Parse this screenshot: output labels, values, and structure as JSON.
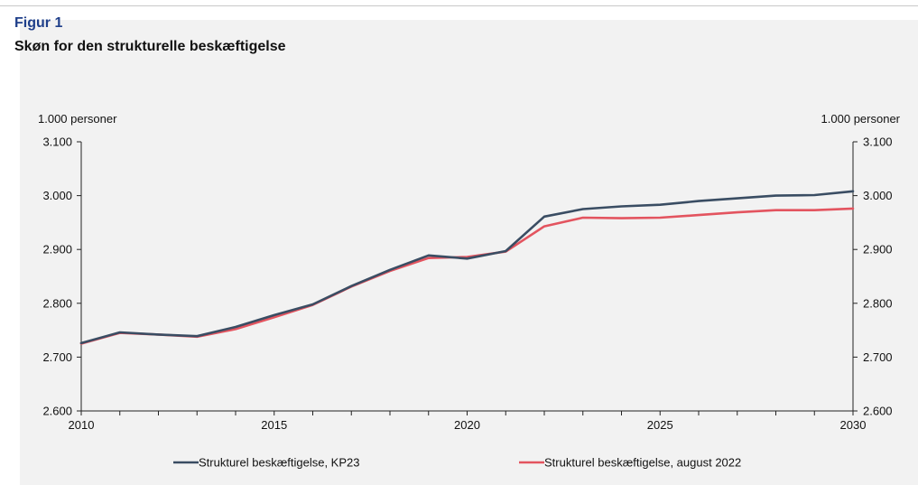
{
  "figure": {
    "label": "Figur 1",
    "title": "Skøn for den strukturelle beskæftigelse"
  },
  "chart_data": {
    "type": "line",
    "title": "Skøn for den strukturelle beskæftigelse",
    "ylabel_left": "1.000 personer",
    "ylabel_right": "1.000 personer",
    "xlim": [
      2010,
      2030
    ],
    "ylim": [
      2600,
      3100
    ],
    "x_tick_labels": [
      "2010",
      "2015",
      "2020",
      "2025",
      "2030"
    ],
    "y_tick_labels": [
      "2.600",
      "2.700",
      "2.800",
      "2.900",
      "3.000",
      "3.100"
    ],
    "grid": false,
    "legend_position": "bottom",
    "series": [
      {
        "name": "Strukturel beskæftigelse, KP23",
        "color": "#3a4d63",
        "x": [
          2010,
          2011,
          2012,
          2013,
          2014,
          2015,
          2016,
          2017,
          2018,
          2019,
          2020,
          2021,
          2022,
          2023,
          2024,
          2025,
          2026,
          2027,
          2028,
          2029,
          2030
        ],
        "values": [
          2726,
          2746,
          2742,
          2739,
          2756,
          2778,
          2798,
          2832,
          2862,
          2889,
          2883,
          2897,
          2961,
          2975,
          2980,
          2983,
          2990,
          2995,
          3000,
          3001,
          3008
        ]
      },
      {
        "name": "Strukturel beskæftigelse, august 2022",
        "color": "#e3545f",
        "x": [
          2010,
          2011,
          2012,
          2013,
          2014,
          2015,
          2016,
          2017,
          2018,
          2019,
          2020,
          2021,
          2022,
          2023,
          2024,
          2025,
          2026,
          2027,
          2028,
          2029,
          2030
        ],
        "values": [
          2725,
          2745,
          2742,
          2738,
          2752,
          2774,
          2797,
          2831,
          2860,
          2884,
          2886,
          2896,
          2943,
          2959,
          2958,
          2959,
          2964,
          2969,
          2973,
          2973,
          2976
        ]
      }
    ]
  }
}
